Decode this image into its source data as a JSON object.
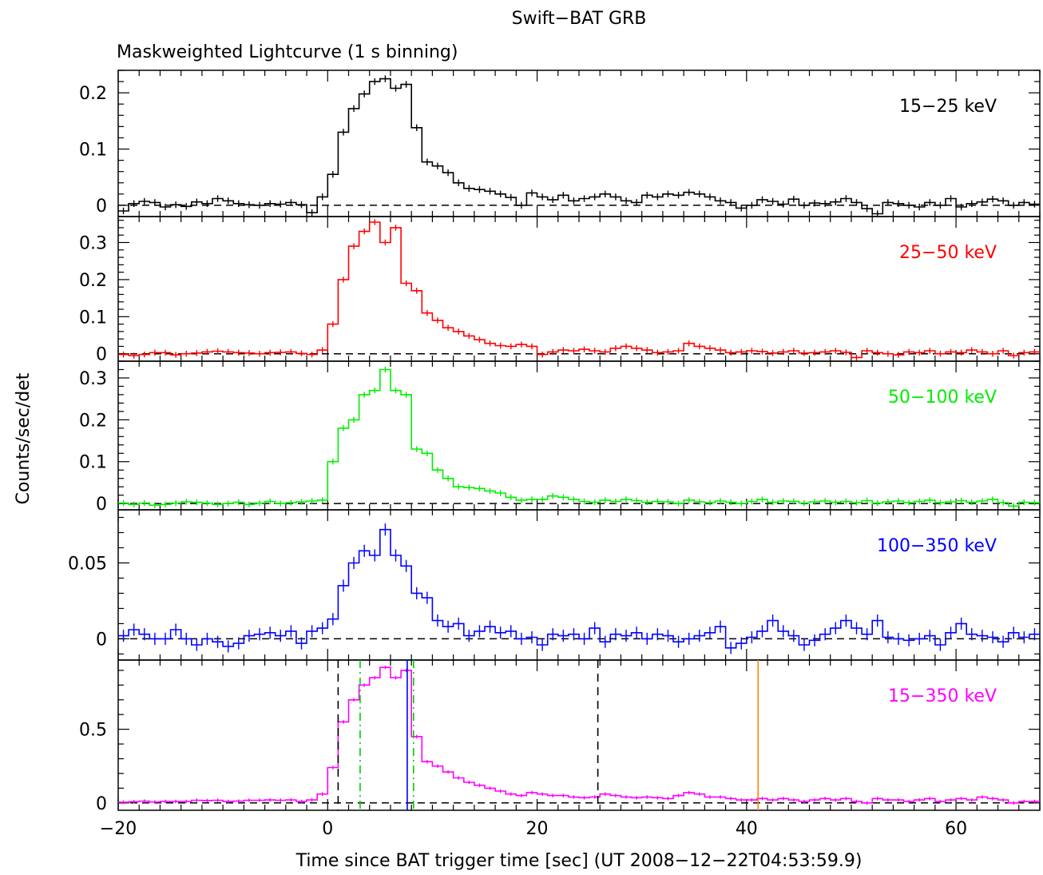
{
  "title": "Swift−BAT GRB",
  "subtitle": "Maskweighted Lightcurve (1 s binning)",
  "ylabel": "Counts/sec/det",
  "xlabel": "Time since BAT trigger time [sec] (UT 2008−12−22T04:53:59.9)",
  "chart_data": {
    "type": "line",
    "x_range": [
      -20,
      68
    ],
    "x_ticks": [
      -20,
      0,
      20,
      40,
      60
    ],
    "x_tick_labels": [
      "−20",
      "0",
      "20",
      "40",
      "60"
    ],
    "shared_x_axis": true,
    "grid": false,
    "zero_baseline": "dashed",
    "panels": [
      {
        "label": "15−25 keV",
        "color": "#000000",
        "ylim": [
          -0.02,
          0.24
        ],
        "y_ticks": [
          0,
          0.1,
          0.2
        ],
        "y_tick_labels": [
          "0",
          "0.1",
          "0.2"
        ],
        "x": [
          -20,
          -19,
          -18,
          -17,
          -16,
          -15,
          -14,
          -13,
          -12,
          -11,
          -10,
          -9,
          -8,
          -7,
          -6,
          -5,
          -4,
          -3,
          -2,
          -1,
          0,
          1,
          2,
          3,
          4,
          5,
          6,
          7,
          8,
          9,
          10,
          11,
          12,
          13,
          14,
          15,
          16,
          17,
          18,
          19,
          20,
          21,
          22,
          23,
          24,
          25,
          26,
          27,
          28,
          29,
          30,
          31,
          32,
          33,
          34,
          35,
          36,
          37,
          38,
          39,
          40,
          41,
          42,
          43,
          44,
          45,
          46,
          47,
          48,
          49,
          50,
          51,
          52,
          53,
          54,
          55,
          56,
          57,
          58,
          59,
          60,
          61,
          62,
          63,
          64,
          65,
          66,
          67
        ],
        "values": [
          -0.01,
          0.003,
          0.007,
          0.005,
          -0.003,
          0.001,
          -0.002,
          0.006,
          0.003,
          0.012,
          0.008,
          0.003,
          0.001,
          0.0,
          0.003,
          0.002,
          0.005,
          0.001,
          -0.013,
          0.015,
          0.055,
          0.13,
          0.172,
          0.198,
          0.22,
          0.225,
          0.208,
          0.215,
          0.138,
          0.077,
          0.07,
          0.058,
          0.04,
          0.03,
          0.028,
          0.025,
          0.02,
          0.014,
          0.0,
          0.022,
          0.015,
          0.01,
          0.018,
          0.008,
          0.012,
          0.015,
          0.02,
          0.015,
          0.008,
          0.005,
          0.018,
          0.015,
          0.02,
          0.018,
          0.023,
          0.02,
          0.015,
          0.008,
          0.005,
          -0.005,
          0.0,
          0.01,
          0.007,
          0.002,
          0.011,
          0.0,
          0.004,
          0.003,
          0.006,
          0.012,
          0.005,
          -0.006,
          -0.015,
          0.005,
          0.003,
          0.0,
          -0.003,
          0.005,
          0.0,
          0.012,
          -0.003,
          0.003,
          0.006,
          0.011,
          0.008,
          0.0,
          0.005,
          0.002
        ],
        "error": 0.006
      },
      {
        "label": "25−50 keV",
        "color": "#ff0000",
        "ylim": [
          -0.02,
          0.37
        ],
        "y_ticks": [
          0,
          0.1,
          0.2,
          0.3
        ],
        "y_tick_labels": [
          "0",
          "0.1",
          "0.2",
          "0.3"
        ],
        "x": [
          -20,
          -19,
          -18,
          -17,
          -16,
          -15,
          -14,
          -13,
          -12,
          -11,
          -10,
          -9,
          -8,
          -7,
          -6,
          -5,
          -4,
          -3,
          -2,
          -1,
          0,
          1,
          2,
          3,
          4,
          5,
          6,
          7,
          8,
          9,
          10,
          11,
          12,
          13,
          14,
          15,
          16,
          17,
          18,
          19,
          20,
          21,
          22,
          23,
          24,
          25,
          26,
          27,
          28,
          29,
          30,
          31,
          32,
          33,
          34,
          35,
          36,
          37,
          38,
          39,
          40,
          41,
          42,
          43,
          44,
          45,
          46,
          47,
          48,
          49,
          50,
          51,
          52,
          53,
          54,
          55,
          56,
          57,
          58,
          59,
          60,
          61,
          62,
          63,
          64,
          65,
          66,
          67
        ],
        "values": [
          -0.002,
          -0.005,
          -0.002,
          0.003,
          0.003,
          -0.003,
          0.0,
          0.002,
          0.005,
          0.007,
          0.005,
          0.003,
          0.002,
          0.0,
          0.003,
          0.004,
          0.005,
          0.001,
          -0.002,
          0.01,
          0.08,
          0.2,
          0.29,
          0.33,
          0.355,
          0.3,
          0.34,
          0.19,
          0.17,
          0.11,
          0.09,
          0.07,
          0.06,
          0.048,
          0.038,
          0.028,
          0.022,
          0.02,
          0.025,
          0.02,
          -0.002,
          0.005,
          0.01,
          0.008,
          0.012,
          0.008,
          0.005,
          0.015,
          0.02,
          0.015,
          0.01,
          0.003,
          0.005,
          0.008,
          0.028,
          0.02,
          0.015,
          0.01,
          0.003,
          0.005,
          0.008,
          0.006,
          0.002,
          0.005,
          0.008,
          0.002,
          0.003,
          0.005,
          0.008,
          0.004,
          -0.01,
          0.008,
          0.003,
          0.0,
          -0.003,
          0.005,
          0.003,
          0.008,
          0.0,
          0.005,
          0.003,
          0.01,
          0.005,
          0.0,
          0.008,
          -0.005,
          0.003,
          0.005
        ],
        "error": 0.008
      },
      {
        "label": "50−100 keV",
        "color": "#00ee00",
        "ylim": [
          -0.015,
          0.34
        ],
        "y_ticks": [
          0,
          0.1,
          0.2,
          0.3
        ],
        "y_tick_labels": [
          "0",
          "0.1",
          "0.2",
          "0.3"
        ],
        "x": [
          -20,
          -19,
          -18,
          -17,
          -16,
          -15,
          -14,
          -13,
          -12,
          -11,
          -10,
          -9,
          -8,
          -7,
          -6,
          -5,
          -4,
          -3,
          -2,
          -1,
          0,
          1,
          2,
          3,
          4,
          5,
          6,
          7,
          8,
          9,
          10,
          11,
          12,
          13,
          14,
          15,
          16,
          17,
          18,
          19,
          20,
          21,
          22,
          23,
          24,
          25,
          26,
          27,
          28,
          29,
          30,
          31,
          32,
          33,
          34,
          35,
          36,
          37,
          38,
          39,
          40,
          41,
          42,
          43,
          44,
          45,
          46,
          47,
          48,
          49,
          50,
          51,
          52,
          53,
          54,
          55,
          56,
          57,
          58,
          59,
          60,
          61,
          62,
          63,
          64,
          65,
          66,
          67
        ],
        "values": [
          0.001,
          -0.002,
          0.001,
          -0.004,
          -0.002,
          0.001,
          0.004,
          0.003,
          0.001,
          -0.002,
          0.0,
          0.003,
          -0.002,
          0.001,
          0.005,
          0.0,
          0.002,
          0.004,
          0.006,
          0.008,
          0.1,
          0.18,
          0.2,
          0.26,
          0.27,
          0.32,
          0.27,
          0.26,
          0.13,
          0.12,
          0.08,
          0.06,
          0.04,
          0.038,
          0.036,
          0.03,
          0.025,
          0.015,
          0.008,
          0.01,
          0.01,
          0.018,
          0.015,
          0.01,
          0.005,
          0.003,
          0.008,
          0.005,
          0.01,
          0.007,
          0.003,
          0.005,
          0.004,
          0.0,
          0.008,
          0.004,
          0.002,
          0.006,
          0.003,
          0.0,
          0.005,
          0.01,
          0.003,
          0.006,
          0.005,
          0.001,
          0.004,
          0.006,
          0.003,
          0.005,
          0.002,
          0.007,
          0.001,
          0.004,
          0.006,
          0.002,
          0.005,
          0.008,
          0.002,
          0.004,
          0.007,
          0.003,
          0.006,
          0.01,
          0.002,
          -0.006,
          0.003,
          0.002
        ],
        "error": 0.007
      },
      {
        "label": "100−350 keV",
        "color": "#0000ff",
        "ylim": [
          -0.014,
          0.085
        ],
        "y_ticks": [
          0,
          0.05
        ],
        "y_tick_labels": [
          "0",
          "0.05"
        ],
        "x": [
          -20,
          -19,
          -18,
          -17,
          -16,
          -15,
          -14,
          -13,
          -12,
          -11,
          -10,
          -9,
          -8,
          -7,
          -6,
          -5,
          -4,
          -3,
          -2,
          -1,
          0,
          1,
          2,
          3,
          4,
          5,
          6,
          7,
          8,
          9,
          10,
          11,
          12,
          13,
          14,
          15,
          16,
          17,
          18,
          19,
          20,
          21,
          22,
          23,
          24,
          25,
          26,
          27,
          28,
          29,
          30,
          31,
          32,
          33,
          34,
          35,
          36,
          37,
          38,
          39,
          40,
          41,
          42,
          43,
          44,
          45,
          46,
          47,
          48,
          49,
          50,
          51,
          52,
          53,
          54,
          55,
          56,
          57,
          58,
          59,
          60,
          61,
          62,
          63,
          64,
          65,
          66,
          67
        ],
        "values": [
          0.002,
          0.006,
          0.003,
          0.0,
          0.0,
          0.006,
          0.0,
          -0.004,
          0.0,
          -0.002,
          -0.005,
          -0.003,
          0.002,
          0.003,
          0.004,
          0.002,
          0.005,
          -0.003,
          0.005,
          0.007,
          0.013,
          0.035,
          0.05,
          0.058,
          0.055,
          0.072,
          0.055,
          0.048,
          0.03,
          0.027,
          0.012,
          0.008,
          0.01,
          0.002,
          0.005,
          0.008,
          0.004,
          0.005,
          0.0,
          0.001,
          -0.004,
          0.003,
          0.002,
          0.003,
          0.0,
          0.007,
          -0.002,
          0.003,
          0.002,
          0.004,
          0.0,
          0.003,
          0.002,
          -0.002,
          0.0,
          0.002,
          0.004,
          0.008,
          -0.006,
          -0.003,
          0.001,
          0.005,
          0.012,
          0.005,
          0.002,
          -0.004,
          -0.001,
          0.003,
          0.007,
          0.012,
          0.007,
          0.003,
          0.012,
          0.001,
          0.0,
          -0.001,
          0.0,
          0.002,
          -0.004,
          0.004,
          0.01,
          0.003,
          0.002,
          0.001,
          -0.002,
          0.004,
          0.001,
          0.003
        ],
        "error": 0.004
      },
      {
        "label": "15−350 keV",
        "color": "#ff00ff",
        "ylim": [
          -0.05,
          0.97
        ],
        "y_ticks": [
          0,
          0.5
        ],
        "y_tick_labels": [
          "0",
          "0.5"
        ],
        "x": [
          -20,
          -19,
          -18,
          -17,
          -16,
          -15,
          -14,
          -13,
          -12,
          -11,
          -10,
          -9,
          -8,
          -7,
          -6,
          -5,
          -4,
          -3,
          -2,
          -1,
          0,
          1,
          2,
          3,
          4,
          5,
          6,
          7,
          8,
          9,
          10,
          11,
          12,
          13,
          14,
          15,
          16,
          17,
          18,
          19,
          20,
          21,
          22,
          23,
          24,
          25,
          26,
          27,
          28,
          29,
          30,
          31,
          32,
          33,
          34,
          35,
          36,
          37,
          38,
          39,
          40,
          41,
          42,
          43,
          44,
          45,
          46,
          47,
          48,
          49,
          50,
          51,
          52,
          53,
          54,
          55,
          56,
          57,
          58,
          59,
          60,
          61,
          62,
          63,
          64,
          65,
          66,
          67
        ],
        "values": [
          0.005,
          0.008,
          0.012,
          0.006,
          0.01,
          0.01,
          0.01,
          0.018,
          0.016,
          0.018,
          0.01,
          0.012,
          0.018,
          0.018,
          0.02,
          0.018,
          0.02,
          0.01,
          0.02,
          0.06,
          0.24,
          0.55,
          0.7,
          0.8,
          0.85,
          0.92,
          0.85,
          0.9,
          0.45,
          0.28,
          0.25,
          0.21,
          0.17,
          0.14,
          0.12,
          0.1,
          0.08,
          0.06,
          0.05,
          0.07,
          0.06,
          0.05,
          0.05,
          0.04,
          0.035,
          0.04,
          0.06,
          0.05,
          0.04,
          0.035,
          0.04,
          0.035,
          0.03,
          0.05,
          0.07,
          0.06,
          0.04,
          0.04,
          0.03,
          0.02,
          0.02,
          0.03,
          0.02,
          0.03,
          0.02,
          0.01,
          0.02,
          0.03,
          0.02,
          0.03,
          0.01,
          0.0,
          0.03,
          0.02,
          0.02,
          0.01,
          0.02,
          0.03,
          0.01,
          0.02,
          0.03,
          0.02,
          0.04,
          0.03,
          0.02,
          0.0,
          0.01,
          0.01
        ],
        "error": 0.012,
        "markers": [
          {
            "x": 1.0,
            "color": "#000000",
            "style": "dashed"
          },
          {
            "x": 25.8,
            "color": "#000000",
            "style": "dashed"
          },
          {
            "x": 3.1,
            "color": "#00cc00",
            "style": "dashdot"
          },
          {
            "x": 8.2,
            "color": "#00cc00",
            "style": "dashdot"
          },
          {
            "x": 7.6,
            "color": "#0000ff",
            "style": "solid"
          },
          {
            "x": 41.1,
            "color": "#ff8800",
            "style": "solid"
          }
        ]
      }
    ]
  }
}
